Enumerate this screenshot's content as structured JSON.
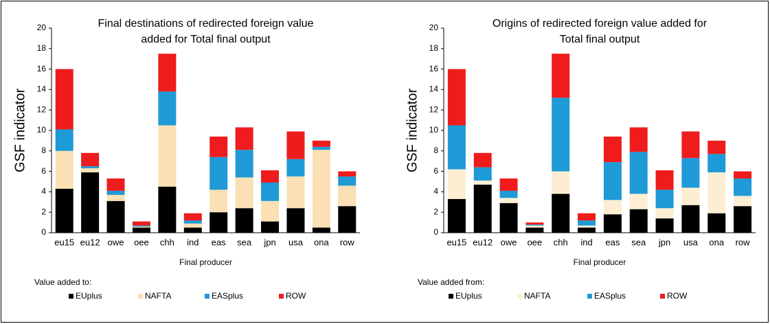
{
  "chart_data": [
    {
      "type": "stacked_bar",
      "title": [
        "Final destinations of redirected foreign value",
        "added for Total final output"
      ],
      "y_label": "GSF indicator",
      "x_label": "Final producer",
      "legend_title": "Value added to:",
      "categories": [
        "eu15",
        "eu12",
        "owe",
        "oee",
        "chh",
        "ind",
        "eas",
        "sea",
        "jpn",
        "usa",
        "ona",
        "row"
      ],
      "ylim": [
        0,
        20
      ],
      "yticks": [
        0,
        2,
        4,
        6,
        8,
        10,
        12,
        14,
        16,
        18,
        20
      ],
      "series": [
        {
          "name": "EUplus",
          "color": "#000000",
          "values": [
            4.3,
            5.9,
            3.1,
            0.5,
            4.5,
            0.5,
            2.0,
            2.4,
            1.1,
            2.4,
            0.5,
            2.6
          ]
        },
        {
          "name": "NAFTA",
          "color": "#fae0b4",
          "values": [
            3.7,
            0.4,
            0.6,
            0.1,
            6.0,
            0.4,
            2.2,
            3.0,
            2.0,
            3.1,
            7.6,
            2.0
          ]
        },
        {
          "name": "EASplus",
          "color": "#1e9ad6",
          "values": [
            2.1,
            0.2,
            0.4,
            0.1,
            3.3,
            0.3,
            3.2,
            2.7,
            1.8,
            1.7,
            0.3,
            0.9
          ]
        },
        {
          "name": "ROW",
          "color": "#ee1c1c",
          "values": [
            5.9,
            1.3,
            1.2,
            0.4,
            3.7,
            0.7,
            2.0,
            2.2,
            1.2,
            2.7,
            0.6,
            0.5
          ]
        }
      ]
    },
    {
      "type": "stacked_bar",
      "title": [
        "Origins of redirected foreign value added for",
        "Total final output"
      ],
      "y_label": "GSF indicator",
      "x_label": "Final producer",
      "legend_title": "Value added from:",
      "categories": [
        "eu15",
        "eu12",
        "owe",
        "oee",
        "chh",
        "ind",
        "eas",
        "sea",
        "jpn",
        "usa",
        "ona",
        "row"
      ],
      "ylim": [
        0,
        20
      ],
      "yticks": [
        0,
        2,
        4,
        6,
        8,
        10,
        12,
        14,
        16,
        18,
        20
      ],
      "series": [
        {
          "name": "EUplus",
          "color": "#000000",
          "values": [
            3.3,
            4.7,
            2.9,
            0.5,
            3.8,
            0.5,
            1.8,
            2.3,
            1.4,
            2.7,
            1.9,
            2.6
          ]
        },
        {
          "name": "NAFTA",
          "color": "#fdeed3",
          "values": [
            2.9,
            0.4,
            0.5,
            0.2,
            2.2,
            0.2,
            1.4,
            1.5,
            1.0,
            1.7,
            4.0,
            1.0
          ]
        },
        {
          "name": "EASplus",
          "color": "#1e9ad6",
          "values": [
            4.3,
            1.3,
            0.7,
            0.1,
            7.2,
            0.5,
            3.7,
            4.1,
            1.8,
            2.9,
            1.8,
            1.7
          ]
        },
        {
          "name": "ROW",
          "color": "#ee1c1c",
          "values": [
            5.5,
            1.4,
            1.2,
            0.2,
            4.3,
            0.7,
            2.5,
            2.4,
            1.9,
            2.6,
            1.3,
            0.7
          ]
        }
      ]
    }
  ]
}
